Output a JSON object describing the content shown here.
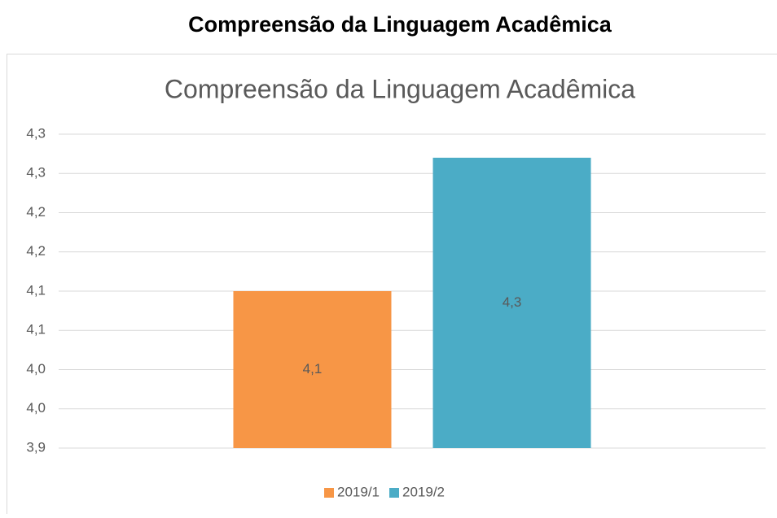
{
  "heading": "Compreensão da Linguagem Acadêmica",
  "chart_data": {
    "type": "bar",
    "title": "Compreensão da Linguagem Acadêmica",
    "categories": [
      null
    ],
    "series": [
      {
        "name": "2019/1",
        "color": "#f79646",
        "values": [
          4.1
        ],
        "value_labels": [
          "4,1"
        ]
      },
      {
        "name": "2019/2",
        "color": "#4bacc6",
        "values": [
          4.27
        ],
        "value_labels": [
          "4,3"
        ]
      }
    ],
    "ylim": [
      3.9,
      4.3
    ],
    "yticks": [
      {
        "value": 3.9,
        "label": "3,9"
      },
      {
        "value": 3.95,
        "label": "4,0"
      },
      {
        "value": 4.0,
        "label": "4,0"
      },
      {
        "value": 4.05,
        "label": "4,1"
      },
      {
        "value": 4.1,
        "label": "4,1"
      },
      {
        "value": 4.15,
        "label": "4,2"
      },
      {
        "value": 4.2,
        "label": "4,2"
      },
      {
        "value": 4.25,
        "label": "4,3"
      },
      {
        "value": 4.3,
        "label": "4,3"
      }
    ],
    "grid": true,
    "legend": "bottom"
  }
}
